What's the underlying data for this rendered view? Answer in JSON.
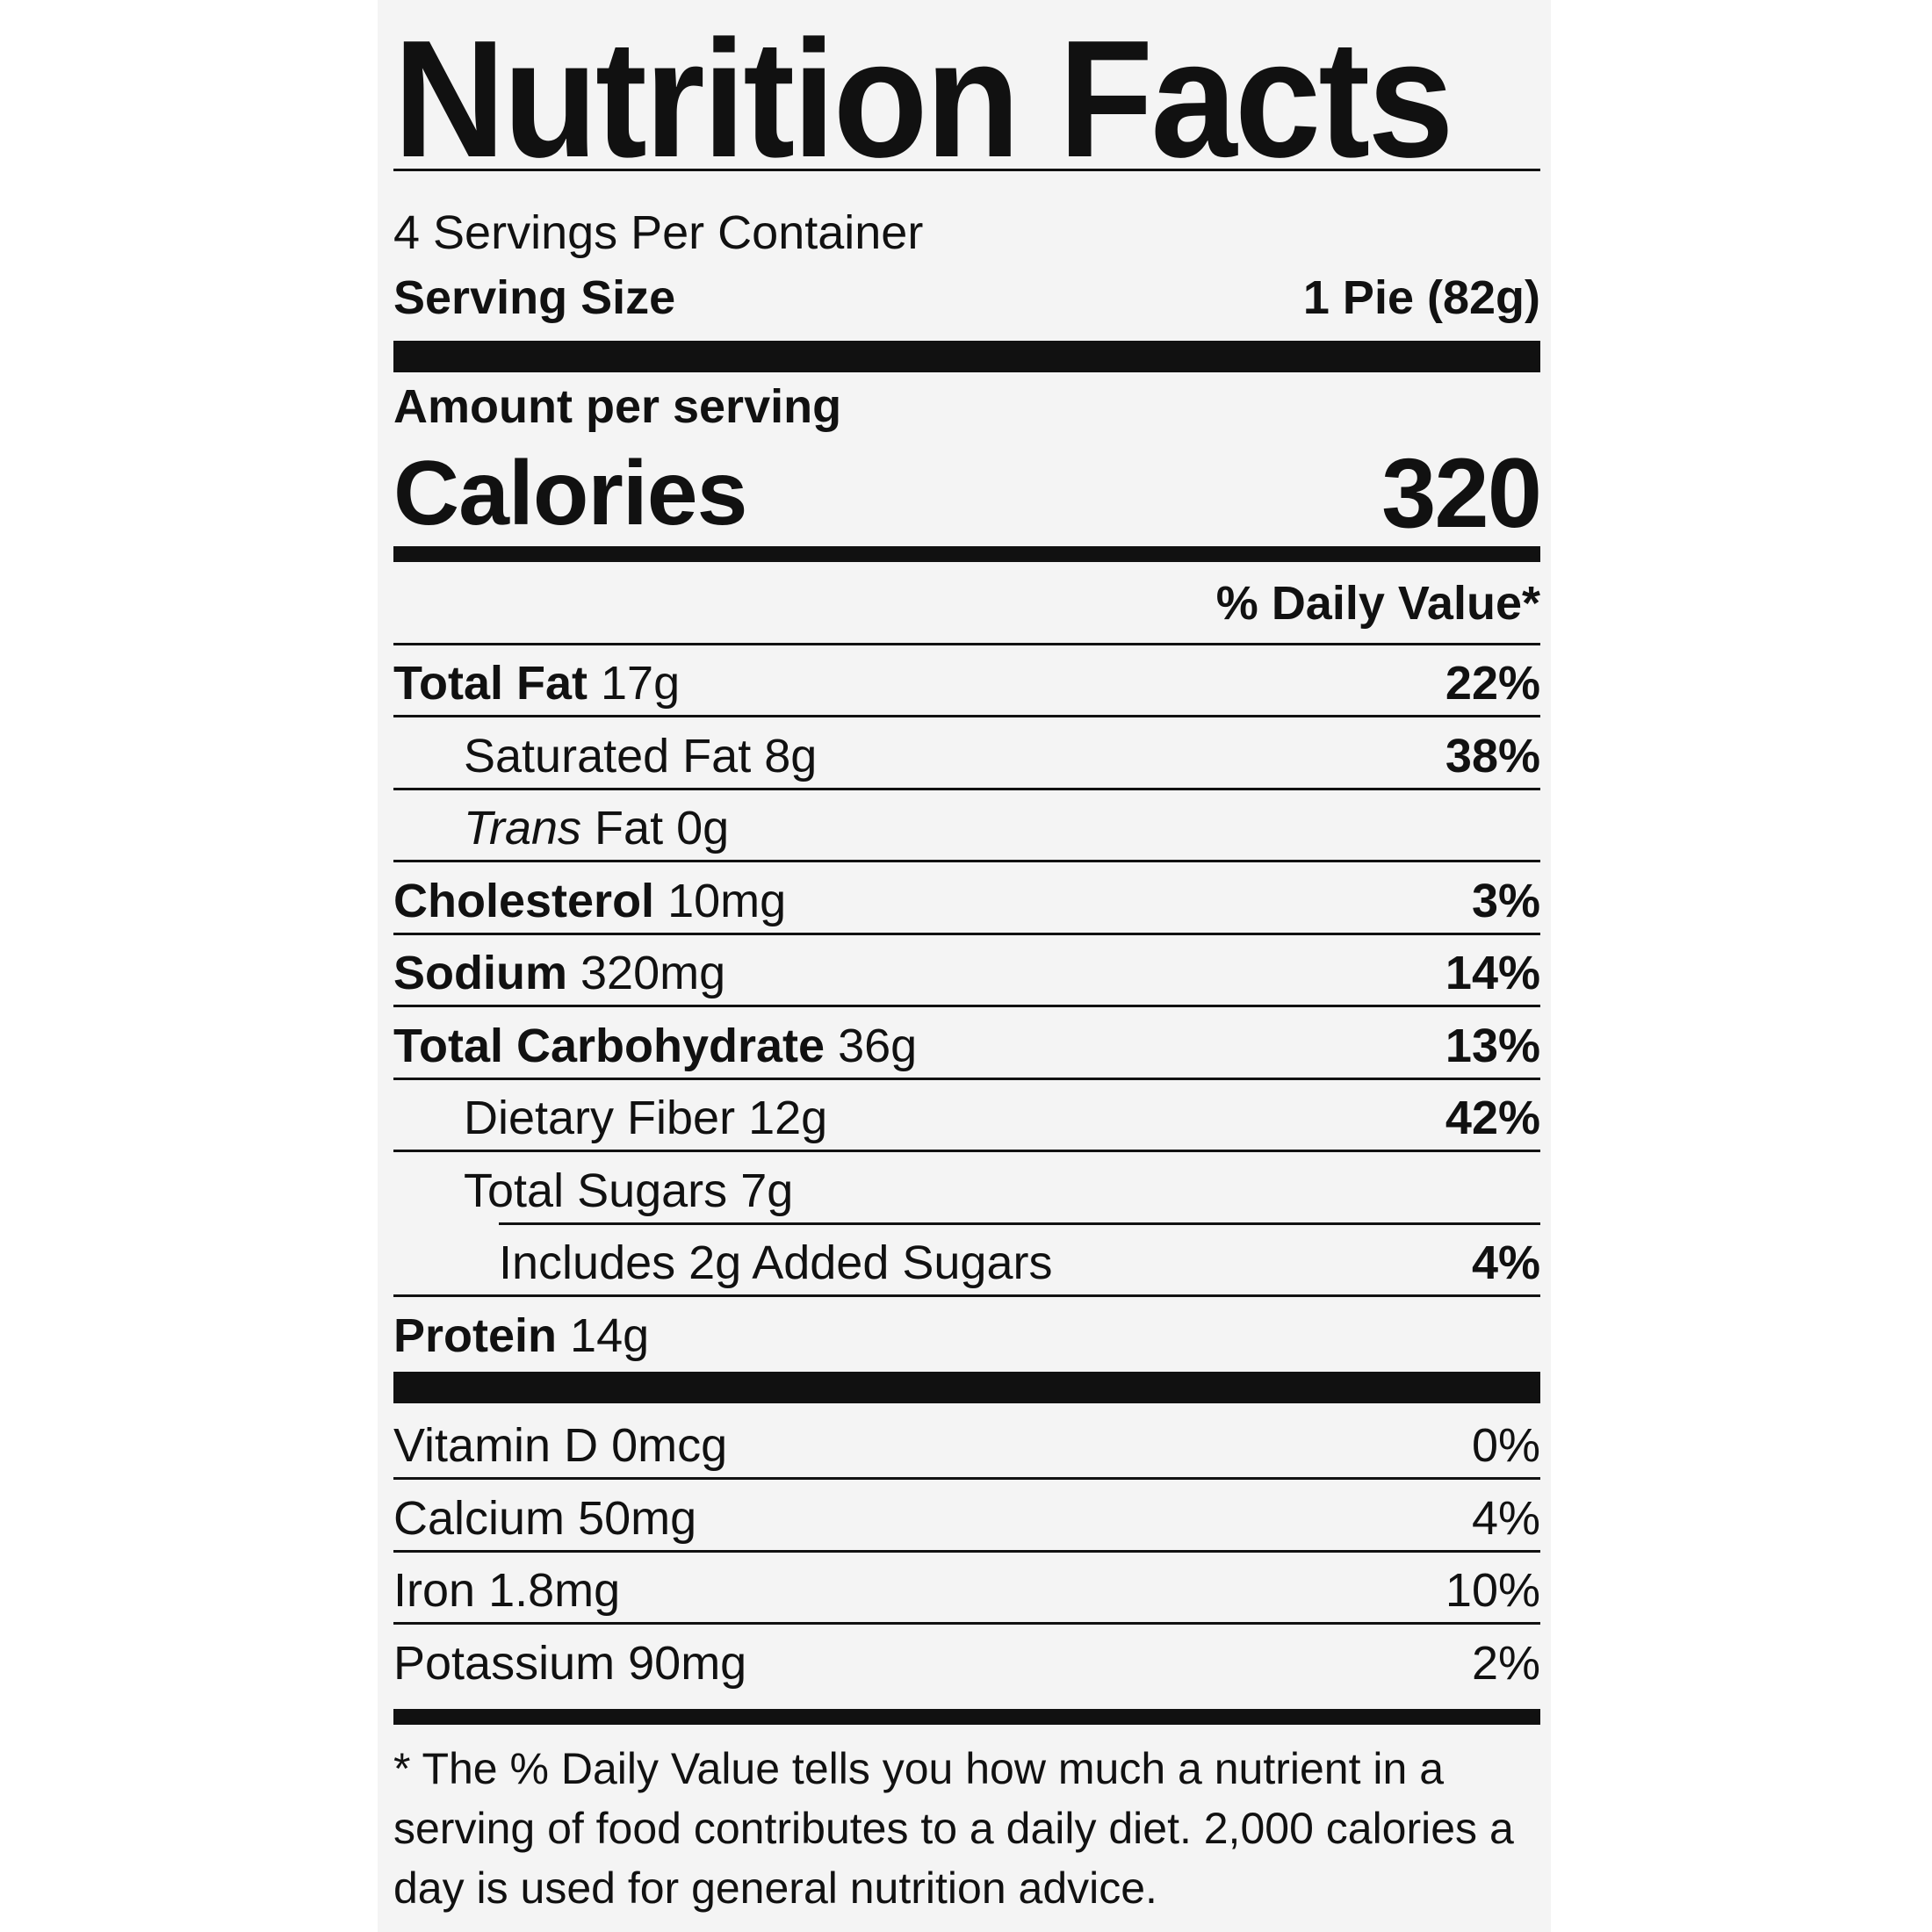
{
  "title": "Nutrition Facts",
  "servings_per_container": "4 Servings Per Container",
  "serving_size": {
    "label": "Serving Size",
    "value": "1 Pie (82g)"
  },
  "amount_per_serving": "Amount per serving",
  "calories": {
    "label": "Calories",
    "value": "320"
  },
  "daily_value_header": "% Daily Value*",
  "nutrients": [
    {
      "name": "Total Fat",
      "amount": "17g",
      "dv": "22%"
    },
    {
      "name": "Saturated Fat",
      "amount": "8g",
      "dv": "38%"
    },
    {
      "name": "Trans",
      "name_rest": "Fat",
      "amount": "0g",
      "dv": ""
    },
    {
      "name": "Cholesterol",
      "amount": "10mg",
      "dv": "3%"
    },
    {
      "name": "Sodium",
      "amount": "320mg",
      "dv": "14%"
    },
    {
      "name": "Total Carbohydrate",
      "amount": "36g",
      "dv": "13%"
    },
    {
      "name": "Dietary Fiber",
      "amount": "12g",
      "dv": "42%"
    },
    {
      "name": "Total Sugars",
      "amount": "7g",
      "dv": ""
    },
    {
      "name": "Includes 2g Added Sugars",
      "amount": "",
      "dv": "4%"
    },
    {
      "name": "Protein",
      "amount": "14g",
      "dv": ""
    }
  ],
  "vitamins": [
    {
      "name": "Vitamin D",
      "amount": "0mcg",
      "dv": "0%"
    },
    {
      "name": "Calcium",
      "amount": "50mg",
      "dv": "4%"
    },
    {
      "name": "Iron",
      "amount": "1.8mg",
      "dv": "10%"
    },
    {
      "name": "Potassium",
      "amount": "90mg",
      "dv": "2%"
    }
  ],
  "footnote": "* The % Daily Value tells you how much a nutrient in a serving of food contributes to a daily diet. 2,000 calories a day is used for general nutrition advice."
}
